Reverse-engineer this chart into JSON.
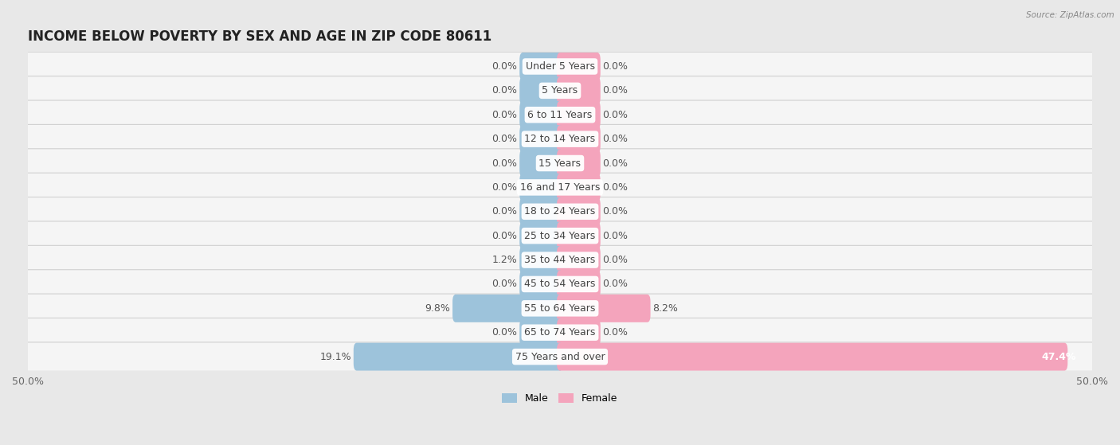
{
  "title": "INCOME BELOW POVERTY BY SEX AND AGE IN ZIP CODE 80611",
  "source": "Source: ZipAtlas.com",
  "categories": [
    "Under 5 Years",
    "5 Years",
    "6 to 11 Years",
    "12 to 14 Years",
    "15 Years",
    "16 and 17 Years",
    "18 to 24 Years",
    "25 to 34 Years",
    "35 to 44 Years",
    "45 to 54 Years",
    "55 to 64 Years",
    "65 to 74 Years",
    "75 Years and over"
  ],
  "male_values": [
    0.0,
    0.0,
    0.0,
    0.0,
    0.0,
    0.0,
    0.0,
    0.0,
    1.2,
    0.0,
    9.8,
    0.0,
    19.1
  ],
  "female_values": [
    0.0,
    0.0,
    0.0,
    0.0,
    0.0,
    0.0,
    0.0,
    0.0,
    0.0,
    0.0,
    8.2,
    0.0,
    47.4
  ],
  "male_color": "#9dc3db",
  "female_color": "#f4a4bc",
  "xlim": 50.0,
  "min_bar": 3.5,
  "background_color": "#e8e8e8",
  "row_color": "#f5f5f5",
  "title_fontsize": 12,
  "label_fontsize": 9,
  "tick_fontsize": 9,
  "bar_height": 0.55
}
